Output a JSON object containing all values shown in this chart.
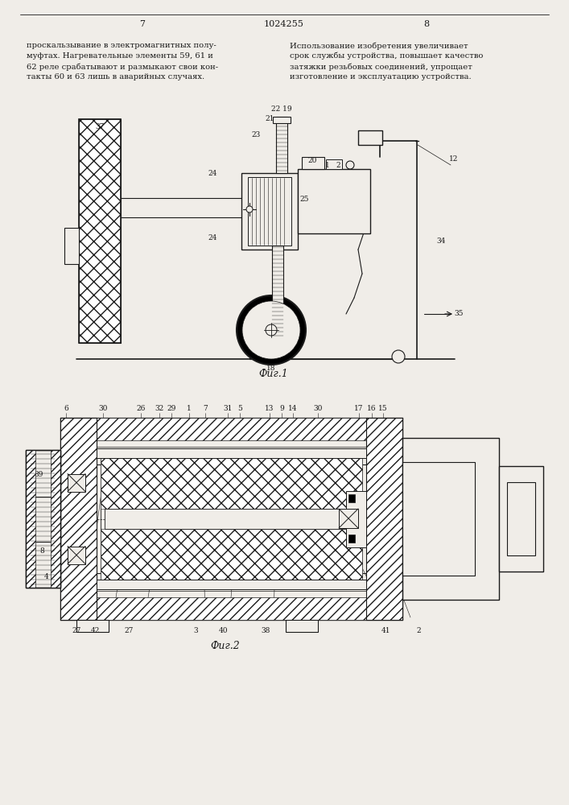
{
  "bg_color": "#f0ede8",
  "line_color": "#1a1a1a",
  "page_number_left": "7",
  "page_number_center": "1024255",
  "page_number_right": "8",
  "text_left": [
    "проскальзывание в электромагнитных полу-",
    "муфтах. Нагревательные элементы 59, 61 и",
    "62 реле срабатывают и размыкают свои кон-",
    "такты 60 и 63 лишь в аварийных случаях."
  ],
  "text_right": [
    "Использование изобретения увеличивает",
    "срок службы устройства, повышает качество",
    "затяжки резьбовых соединений, упрощает",
    "изготовление и эксплуатацию устройства."
  ],
  "fig1_label": "Фиг.1",
  "fig2_label": "Фиг.2"
}
